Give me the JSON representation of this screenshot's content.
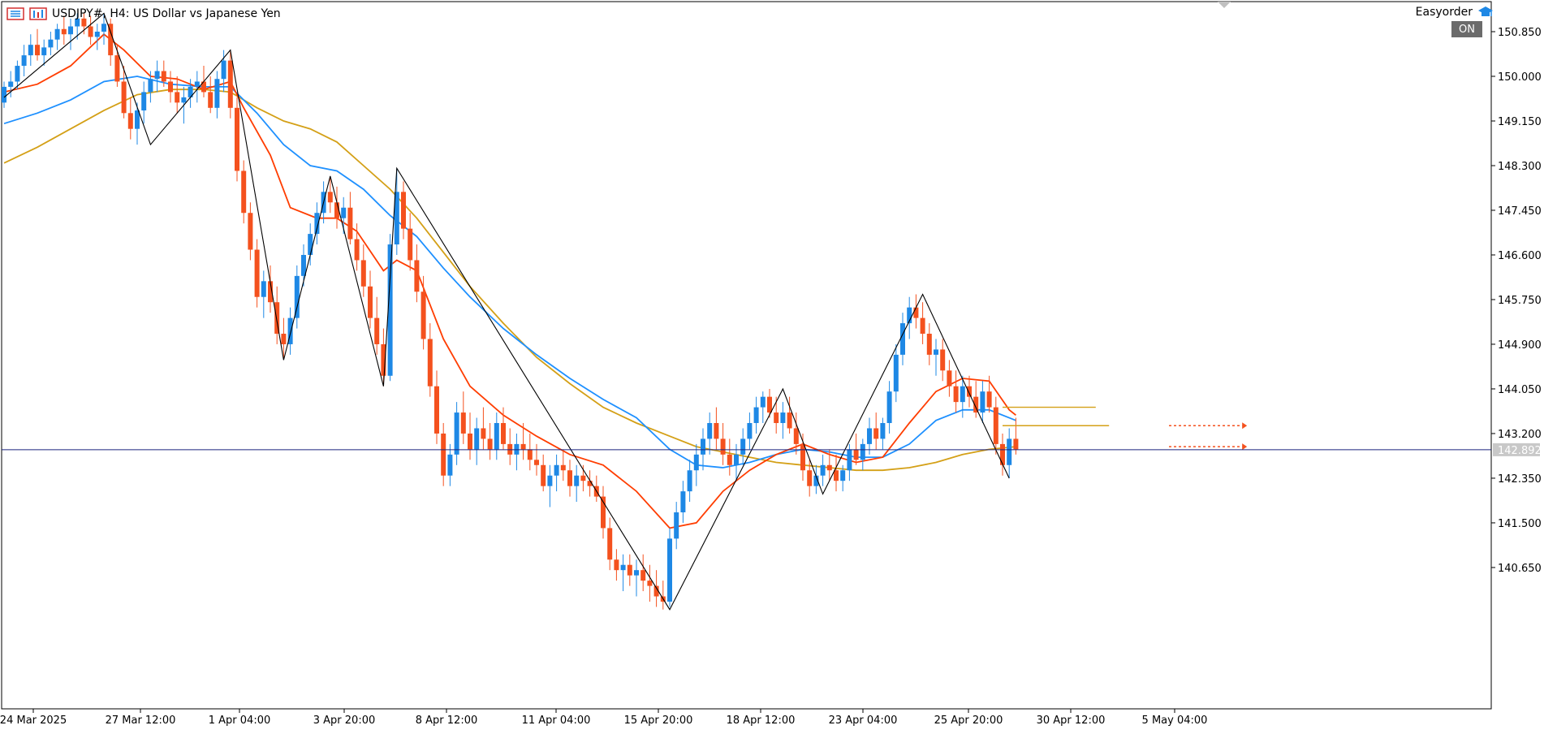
{
  "header": {
    "symbol_line": "USDJPY#, H4:  US Dollar vs Japanese Yen",
    "easyorder": "Easyorder",
    "on_badge": "ON"
  },
  "colors": {
    "bull": "#1e88e5",
    "bear": "#f4511e",
    "ma_fast": "#ff3d00",
    "ma_mid": "#1e90ff",
    "ma_slow": "#d4a017",
    "zigzag": "#000000",
    "price_line": "#1a237e",
    "axis_text": "#000000"
  },
  "icons": {
    "chart_menu": "hamburger-list-icon",
    "chart_type": "chart-bars-icon",
    "easyorder": "graduation-cap-icon"
  },
  "chart_data": {
    "type": "candlestick",
    "title": "USDJPY#, H4:  US Dollar vs Japanese Yen",
    "ylim": [
      139.7,
      151.2
    ],
    "y_ticks": [
      150.85,
      150.0,
      149.15,
      148.3,
      147.45,
      146.6,
      145.75,
      144.9,
      144.05,
      143.2,
      142.35,
      141.5,
      140.65
    ],
    "y_tick_labels": [
      "150.850",
      "150.000",
      "149.150",
      "148.300",
      "147.450",
      "146.600",
      "145.750",
      "144.900",
      "144.050",
      "143.200",
      "142.350",
      "141.500",
      "140.650"
    ],
    "x_tick_labels": [
      "24 Mar 2025",
      "27 Mar 12:00",
      "1 Apr 04:00",
      "3 Apr 20:00",
      "8 Apr 12:00",
      "11 Apr 04:00",
      "15 Apr 20:00",
      "18 Apr 12:00",
      "23 Apr 04:00",
      "25 Apr 20:00",
      "30 Apr 12:00",
      "5 May 04:00"
    ],
    "current_price": 142.892,
    "current_price_label": "142.892",
    "zigzag": [
      {
        "i": 0,
        "price": 149.6
      },
      {
        "i": 15,
        "price": 151.2
      },
      {
        "i": 22,
        "price": 148.7
      },
      {
        "i": 34,
        "price": 150.5
      },
      {
        "i": 42,
        "price": 144.6
      },
      {
        "i": 49,
        "price": 148.1
      },
      {
        "i": 57,
        "price": 144.1
      },
      {
        "i": 59,
        "price": 148.25
      },
      {
        "i": 100,
        "price": 139.85
      },
      {
        "i": 117,
        "price": 144.05
      },
      {
        "i": 123,
        "price": 142.05
      },
      {
        "i": 138,
        "price": 145.85
      },
      {
        "i": 151,
        "price": 142.35
      }
    ],
    "levels": [
      {
        "price": 143.7,
        "from_i": 150,
        "to_i": 164,
        "color": "#d4a017"
      },
      {
        "price": 143.35,
        "from_i": 150,
        "to_i": 166,
        "color": "#d4a017"
      },
      {
        "price": 143.35,
        "from_i": 175,
        "to_i": 186,
        "color": "#f4511e",
        "dashed": true
      },
      {
        "price": 142.95,
        "from_i": 175,
        "to_i": 186,
        "color": "#f4511e",
        "dashed": true
      }
    ],
    "ma_fast": [
      [
        0,
        149.7
      ],
      [
        5,
        149.85
      ],
      [
        10,
        150.2
      ],
      [
        15,
        150.8
      ],
      [
        18,
        150.5
      ],
      [
        22,
        150.0
      ],
      [
        26,
        149.95
      ],
      [
        30,
        149.75
      ],
      [
        34,
        149.9
      ],
      [
        36,
        149.4
      ],
      [
        40,
        148.5
      ],
      [
        43,
        147.5
      ],
      [
        47,
        147.3
      ],
      [
        50,
        147.3
      ],
      [
        53,
        147.05
      ],
      [
        57,
        146.3
      ],
      [
        59,
        146.5
      ],
      [
        62,
        146.3
      ],
      [
        66,
        145.0
      ],
      [
        70,
        144.1
      ],
      [
        75,
        143.55
      ],
      [
        80,
        143.15
      ],
      [
        85,
        142.8
      ],
      [
        90,
        142.6
      ],
      [
        95,
        142.1
      ],
      [
        100,
        141.4
      ],
      [
        104,
        141.5
      ],
      [
        108,
        142.1
      ],
      [
        112,
        142.5
      ],
      [
        116,
        142.8
      ],
      [
        120,
        143.0
      ],
      [
        124,
        142.8
      ],
      [
        128,
        142.65
      ],
      [
        132,
        142.75
      ],
      [
        136,
        143.4
      ],
      [
        140,
        144.0
      ],
      [
        144,
        144.25
      ],
      [
        148,
        144.2
      ],
      [
        151,
        143.65
      ],
      [
        152,
        143.55
      ]
    ],
    "ma_mid": [
      [
        0,
        149.1
      ],
      [
        5,
        149.3
      ],
      [
        10,
        149.55
      ],
      [
        15,
        149.9
      ],
      [
        20,
        150.0
      ],
      [
        25,
        149.85
      ],
      [
        30,
        149.8
      ],
      [
        34,
        149.8
      ],
      [
        38,
        149.3
      ],
      [
        42,
        148.7
      ],
      [
        46,
        148.3
      ],
      [
        50,
        148.2
      ],
      [
        54,
        147.85
      ],
      [
        58,
        147.35
      ],
      [
        62,
        146.95
      ],
      [
        66,
        146.35
      ],
      [
        70,
        145.8
      ],
      [
        75,
        145.2
      ],
      [
        80,
        144.7
      ],
      [
        85,
        144.25
      ],
      [
        90,
        143.85
      ],
      [
        95,
        143.5
      ],
      [
        100,
        142.9
      ],
      [
        104,
        142.6
      ],
      [
        108,
        142.55
      ],
      [
        112,
        142.65
      ],
      [
        116,
        142.8
      ],
      [
        120,
        142.9
      ],
      [
        124,
        142.85
      ],
      [
        128,
        142.75
      ],
      [
        132,
        142.75
      ],
      [
        136,
        143.0
      ],
      [
        140,
        143.45
      ],
      [
        144,
        143.65
      ],
      [
        148,
        143.65
      ],
      [
        152,
        143.45
      ]
    ],
    "ma_slow": [
      [
        0,
        148.35
      ],
      [
        5,
        148.65
      ],
      [
        10,
        149.0
      ],
      [
        15,
        149.35
      ],
      [
        20,
        149.65
      ],
      [
        25,
        149.75
      ],
      [
        30,
        149.75
      ],
      [
        34,
        149.7
      ],
      [
        38,
        149.4
      ],
      [
        42,
        149.15
      ],
      [
        46,
        149.0
      ],
      [
        50,
        148.75
      ],
      [
        54,
        148.3
      ],
      [
        58,
        147.85
      ],
      [
        62,
        147.3
      ],
      [
        66,
        146.65
      ],
      [
        70,
        146.0
      ],
      [
        75,
        145.3
      ],
      [
        80,
        144.65
      ],
      [
        85,
        144.15
      ],
      [
        90,
        143.7
      ],
      [
        95,
        143.4
      ],
      [
        100,
        143.15
      ],
      [
        104,
        142.95
      ],
      [
        108,
        142.85
      ],
      [
        112,
        142.75
      ],
      [
        116,
        142.65
      ],
      [
        120,
        142.6
      ],
      [
        124,
        142.55
      ],
      [
        128,
        142.5
      ],
      [
        132,
        142.5
      ],
      [
        136,
        142.55
      ],
      [
        140,
        142.65
      ],
      [
        144,
        142.8
      ],
      [
        148,
        142.9
      ],
      [
        152,
        142.95
      ]
    ],
    "candles": [
      [
        149.5,
        149.9,
        149.4,
        149.8
      ],
      [
        149.8,
        150.1,
        149.6,
        149.9
      ],
      [
        149.9,
        150.3,
        149.75,
        150.2
      ],
      [
        150.2,
        150.6,
        150.0,
        150.4
      ],
      [
        150.4,
        150.8,
        150.2,
        150.6
      ],
      [
        150.6,
        150.9,
        150.3,
        150.4
      ],
      [
        150.4,
        150.7,
        150.2,
        150.55
      ],
      [
        150.55,
        150.85,
        150.4,
        150.7
      ],
      [
        150.7,
        151.0,
        150.5,
        150.9
      ],
      [
        150.9,
        151.15,
        150.6,
        150.8
      ],
      [
        150.8,
        151.1,
        150.5,
        150.95
      ],
      [
        150.95,
        151.2,
        150.7,
        151.1
      ],
      [
        151.1,
        151.2,
        150.8,
        150.95
      ],
      [
        150.95,
        151.15,
        150.6,
        150.75
      ],
      [
        150.75,
        151.0,
        150.5,
        150.85
      ],
      [
        150.85,
        151.2,
        150.6,
        151.0
      ],
      [
        151.0,
        151.1,
        150.2,
        150.4
      ],
      [
        150.4,
        150.6,
        149.8,
        149.9
      ],
      [
        149.9,
        150.2,
        149.2,
        149.3
      ],
      [
        149.3,
        149.6,
        148.8,
        149.0
      ],
      [
        149.0,
        149.5,
        148.7,
        149.35
      ],
      [
        149.35,
        149.9,
        149.1,
        149.7
      ],
      [
        149.7,
        150.1,
        149.5,
        149.95
      ],
      [
        149.95,
        150.3,
        149.7,
        150.1
      ],
      [
        150.1,
        150.3,
        149.8,
        149.9
      ],
      [
        149.9,
        150.1,
        149.5,
        149.7
      ],
      [
        149.7,
        150.0,
        149.3,
        149.5
      ],
      [
        149.5,
        149.8,
        149.1,
        149.6
      ],
      [
        149.6,
        149.95,
        149.4,
        149.8
      ],
      [
        149.8,
        150.1,
        149.5,
        149.9
      ],
      [
        149.9,
        150.2,
        149.6,
        149.7
      ],
      [
        149.7,
        150.0,
        149.3,
        149.4
      ],
      [
        149.4,
        150.1,
        149.2,
        149.95
      ],
      [
        149.95,
        150.5,
        149.7,
        150.3
      ],
      [
        150.3,
        150.5,
        149.2,
        149.4
      ],
      [
        149.4,
        149.6,
        148.0,
        148.2
      ],
      [
        148.2,
        148.4,
        147.2,
        147.4
      ],
      [
        147.4,
        147.6,
        146.5,
        146.7
      ],
      [
        146.7,
        146.9,
        145.6,
        145.8
      ],
      [
        145.8,
        146.3,
        145.4,
        146.1
      ],
      [
        146.1,
        146.4,
        145.5,
        145.7
      ],
      [
        145.7,
        146.0,
        144.9,
        145.1
      ],
      [
        145.1,
        145.4,
        144.6,
        144.9
      ],
      [
        144.9,
        145.6,
        144.7,
        145.4
      ],
      [
        145.4,
        146.4,
        145.2,
        146.2
      ],
      [
        146.2,
        146.8,
        146.0,
        146.6
      ],
      [
        146.6,
        147.2,
        146.4,
        147.0
      ],
      [
        147.0,
        147.6,
        146.8,
        147.4
      ],
      [
        147.4,
        148.0,
        147.2,
        147.8
      ],
      [
        147.8,
        148.1,
        147.4,
        147.6
      ],
      [
        147.6,
        147.9,
        147.1,
        147.3
      ],
      [
        147.3,
        147.7,
        147.0,
        147.5
      ],
      [
        147.5,
        147.8,
        146.8,
        146.9
      ],
      [
        146.9,
        147.2,
        146.3,
        146.5
      ],
      [
        146.5,
        146.8,
        145.8,
        146.0
      ],
      [
        146.0,
        146.3,
        145.2,
        145.4
      ],
      [
        145.4,
        145.8,
        144.7,
        144.9
      ],
      [
        144.9,
        145.2,
        144.1,
        144.3
      ],
      [
        144.3,
        147.0,
        144.2,
        146.8
      ],
      [
        146.8,
        148.25,
        146.6,
        147.8
      ],
      [
        147.8,
        148.0,
        146.9,
        147.1
      ],
      [
        147.1,
        147.4,
        146.3,
        146.5
      ],
      [
        146.5,
        146.8,
        145.7,
        145.9
      ],
      [
        145.9,
        146.2,
        144.8,
        145.0
      ],
      [
        145.0,
        145.3,
        143.9,
        144.1
      ],
      [
        144.1,
        144.4,
        143.0,
        143.2
      ],
      [
        143.2,
        143.4,
        142.2,
        142.4
      ],
      [
        142.4,
        143.0,
        142.2,
        142.8
      ],
      [
        142.8,
        143.8,
        142.6,
        143.6
      ],
      [
        143.6,
        144.0,
        143.0,
        143.2
      ],
      [
        143.2,
        143.6,
        142.7,
        142.9
      ],
      [
        142.9,
        143.5,
        142.6,
        143.3
      ],
      [
        143.3,
        143.7,
        142.9,
        143.1
      ],
      [
        143.1,
        143.4,
        142.7,
        142.9
      ],
      [
        142.9,
        143.6,
        142.7,
        143.4
      ],
      [
        143.4,
        143.7,
        142.9,
        143.0
      ],
      [
        143.0,
        143.3,
        142.6,
        142.8
      ],
      [
        142.8,
        143.2,
        142.5,
        143.0
      ],
      [
        143.0,
        143.4,
        142.7,
        142.9
      ],
      [
        142.9,
        143.2,
        142.5,
        142.7
      ],
      [
        142.7,
        143.0,
        142.4,
        142.6
      ],
      [
        142.6,
        142.8,
        142.1,
        142.2
      ],
      [
        142.2,
        142.6,
        141.8,
        142.4
      ],
      [
        142.4,
        142.8,
        142.1,
        142.6
      ],
      [
        142.6,
        142.9,
        142.3,
        142.5
      ],
      [
        142.5,
        142.7,
        142.0,
        142.2
      ],
      [
        142.2,
        142.6,
        141.9,
        142.4
      ],
      [
        142.4,
        142.6,
        142.1,
        142.3
      ],
      [
        142.3,
        142.5,
        142.0,
        142.2
      ],
      [
        142.2,
        142.4,
        141.9,
        142.0
      ],
      [
        142.0,
        142.2,
        141.2,
        141.4
      ],
      [
        141.4,
        141.6,
        140.6,
        140.8
      ],
      [
        140.8,
        141.0,
        140.4,
        140.6
      ],
      [
        140.6,
        140.9,
        140.2,
        140.7
      ],
      [
        140.7,
        140.9,
        140.3,
        140.5
      ],
      [
        140.5,
        140.8,
        140.1,
        140.6
      ],
      [
        140.6,
        140.9,
        140.2,
        140.4
      ],
      [
        140.4,
        140.7,
        140.0,
        140.3
      ],
      [
        140.3,
        140.6,
        139.9,
        140.1
      ],
      [
        140.1,
        140.4,
        139.85,
        140.0
      ],
      [
        140.0,
        141.4,
        139.9,
        141.2
      ],
      [
        141.2,
        141.9,
        141.0,
        141.7
      ],
      [
        141.7,
        142.3,
        141.5,
        142.1
      ],
      [
        142.1,
        142.7,
        141.9,
        142.5
      ],
      [
        142.5,
        143.0,
        142.2,
        142.8
      ],
      [
        142.8,
        143.3,
        142.5,
        143.1
      ],
      [
        143.1,
        143.6,
        142.8,
        143.4
      ],
      [
        143.4,
        143.7,
        142.9,
        143.1
      ],
      [
        143.1,
        143.4,
        142.6,
        142.8
      ],
      [
        142.8,
        143.1,
        142.4,
        142.6
      ],
      [
        142.6,
        143.0,
        142.3,
        142.8
      ],
      [
        142.8,
        143.3,
        142.6,
        143.1
      ],
      [
        143.1,
        143.6,
        142.9,
        143.4
      ],
      [
        143.4,
        143.9,
        143.2,
        143.7
      ],
      [
        143.7,
        144.0,
        143.4,
        143.9
      ],
      [
        143.9,
        144.05,
        143.5,
        143.6
      ],
      [
        143.6,
        143.9,
        143.2,
        143.4
      ],
      [
        143.4,
        143.8,
        143.1,
        143.6
      ],
      [
        143.6,
        143.9,
        143.2,
        143.3
      ],
      [
        143.3,
        143.6,
        142.8,
        143.0
      ],
      [
        143.0,
        143.2,
        142.3,
        142.5
      ],
      [
        142.5,
        142.7,
        142.0,
        142.2
      ],
      [
        142.2,
        142.6,
        142.05,
        142.4
      ],
      [
        142.4,
        142.8,
        142.2,
        142.6
      ],
      [
        142.6,
        142.9,
        142.3,
        142.5
      ],
      [
        142.5,
        142.8,
        142.1,
        142.3
      ],
      [
        142.3,
        142.6,
        142.1,
        142.5
      ],
      [
        142.5,
        143.0,
        142.3,
        142.9
      ],
      [
        142.9,
        143.2,
        142.6,
        142.7
      ],
      [
        142.7,
        143.1,
        142.5,
        143.0
      ],
      [
        143.0,
        143.5,
        142.8,
        143.3
      ],
      [
        143.3,
        143.6,
        142.9,
        143.1
      ],
      [
        143.1,
        143.5,
        142.9,
        143.4
      ],
      [
        143.4,
        144.2,
        143.2,
        144.0
      ],
      [
        144.0,
        144.9,
        143.8,
        144.7
      ],
      [
        144.7,
        145.5,
        144.5,
        145.3
      ],
      [
        145.3,
        145.8,
        145.0,
        145.6
      ],
      [
        145.6,
        145.85,
        145.2,
        145.4
      ],
      [
        145.4,
        145.7,
        144.9,
        145.1
      ],
      [
        145.1,
        145.3,
        144.5,
        144.7
      ],
      [
        144.7,
        145.0,
        144.3,
        144.8
      ],
      [
        144.8,
        145.0,
        144.2,
        144.4
      ],
      [
        144.4,
        144.6,
        143.9,
        144.1
      ],
      [
        144.1,
        144.4,
        143.6,
        143.8
      ],
      [
        143.8,
        144.3,
        143.5,
        144.1
      ],
      [
        144.1,
        144.3,
        143.7,
        143.9
      ],
      [
        143.9,
        144.2,
        143.5,
        143.6
      ],
      [
        143.6,
        144.2,
        143.4,
        144.0
      ],
      [
        144.0,
        144.3,
        143.6,
        143.7
      ],
      [
        143.7,
        143.9,
        142.8,
        143.0
      ],
      [
        143.0,
        143.2,
        142.4,
        142.6
      ],
      [
        142.6,
        143.3,
        142.35,
        143.1
      ],
      [
        143.1,
        143.5,
        142.8,
        142.9
      ]
    ]
  }
}
